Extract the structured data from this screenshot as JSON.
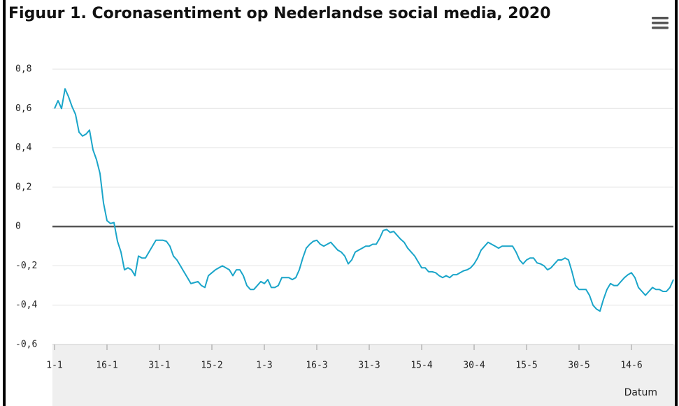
{
  "chart_data": {
    "type": "line",
    "title": "Figuur 1. Coronasentiment op Nederlandse social media, 2020",
    "x_label": "Datum",
    "categories": [
      "1-1",
      null,
      null,
      null,
      null,
      null,
      null,
      null,
      null,
      null,
      null,
      null,
      null,
      null,
      null,
      "16-1",
      null,
      null,
      null,
      null,
      null,
      null,
      null,
      null,
      null,
      null,
      null,
      null,
      null,
      null,
      "31-1",
      null,
      null,
      null,
      null,
      null,
      null,
      null,
      null,
      null,
      null,
      null,
      null,
      null,
      null,
      "15-2",
      null,
      null,
      null,
      null,
      null,
      null,
      null,
      null,
      null,
      null,
      null,
      null,
      null,
      null,
      "1-3",
      null,
      null,
      null,
      null,
      null,
      null,
      null,
      null,
      null,
      null,
      null,
      null,
      null,
      null,
      "16-3",
      null,
      null,
      null,
      null,
      null,
      null,
      null,
      null,
      null,
      null,
      null,
      null,
      null,
      null,
      "31-3",
      null,
      null,
      null,
      null,
      null,
      null,
      null,
      null,
      null,
      null,
      null,
      null,
      null,
      null,
      "15-4",
      null,
      null,
      null,
      null,
      null,
      null,
      null,
      null,
      null,
      null,
      null,
      null,
      null,
      null,
      "30-4",
      null,
      null,
      null,
      null,
      null,
      null,
      null,
      null,
      null,
      null,
      null,
      null,
      null,
      null,
      "15-5",
      null,
      null,
      null,
      null,
      null,
      null,
      null,
      null,
      null,
      null,
      null,
      null,
      null,
      null,
      "30-5",
      null,
      null,
      null,
      null,
      null,
      null,
      null,
      null,
      null,
      null,
      null,
      null,
      null,
      null,
      "14-6",
      null,
      null,
      null,
      null,
      null,
      null,
      null,
      null,
      null,
      null,
      null,
      null
    ],
    "series": [
      {
        "color": "#1aa5c9",
        "values": [
          0.6,
          0.64,
          0.6,
          0.7,
          0.66,
          0.61,
          0.57,
          0.48,
          0.46,
          0.47,
          0.49,
          0.39,
          0.34,
          0.27,
          0.12,
          0.03,
          0.015,
          0.02,
          -0.075,
          -0.13,
          -0.22,
          -0.21,
          -0.22,
          -0.25,
          -0.15,
          -0.16,
          -0.16,
          -0.13,
          -0.1,
          -0.07,
          -0.07,
          -0.07,
          -0.075,
          -0.1,
          -0.15,
          -0.17,
          -0.2,
          -0.23,
          -0.26,
          -0.29,
          -0.285,
          -0.28,
          -0.3,
          -0.31,
          -0.25,
          -0.235,
          -0.22,
          -0.21,
          -0.2,
          -0.21,
          -0.22,
          -0.25,
          -0.22,
          -0.22,
          -0.25,
          -0.3,
          -0.32,
          -0.32,
          -0.3,
          -0.28,
          -0.29,
          -0.27,
          -0.31,
          -0.31,
          -0.3,
          -0.26,
          -0.26,
          -0.26,
          -0.27,
          -0.26,
          -0.22,
          -0.16,
          -0.11,
          -0.09,
          -0.075,
          -0.07,
          -0.09,
          -0.1,
          -0.09,
          -0.08,
          -0.1,
          -0.12,
          -0.13,
          -0.15,
          -0.19,
          -0.17,
          -0.13,
          -0.12,
          -0.11,
          -0.1,
          -0.1,
          -0.09,
          -0.09,
          -0.06,
          -0.02,
          -0.015,
          -0.03,
          -0.025,
          -0.045,
          -0.065,
          -0.08,
          -0.11,
          -0.13,
          -0.15,
          -0.18,
          -0.21,
          -0.21,
          -0.23,
          -0.23,
          -0.235,
          -0.25,
          -0.26,
          -0.25,
          -0.26,
          -0.245,
          -0.245,
          -0.235,
          -0.225,
          -0.22,
          -0.21,
          -0.19,
          -0.16,
          -0.12,
          -0.1,
          -0.08,
          -0.09,
          -0.1,
          -0.11,
          -0.1,
          -0.1,
          -0.1,
          -0.1,
          -0.13,
          -0.17,
          -0.19,
          -0.17,
          -0.16,
          -0.16,
          -0.185,
          -0.19,
          -0.2,
          -0.22,
          -0.21,
          -0.19,
          -0.17,
          -0.17,
          -0.16,
          -0.17,
          -0.23,
          -0.3,
          -0.32,
          -0.32,
          -0.32,
          -0.35,
          -0.4,
          -0.42,
          -0.43,
          -0.37,
          -0.32,
          -0.29,
          -0.3,
          -0.3,
          -0.28,
          -0.26,
          -0.245,
          -0.235,
          -0.26,
          -0.31,
          -0.33,
          -0.35,
          -0.33,
          -0.31,
          -0.32,
          -0.32,
          -0.33,
          -0.33,
          -0.31,
          -0.27
        ]
      }
    ],
    "ylim": [
      -0.6,
      0.8
    ],
    "yticks": [
      {
        "value": -0.6,
        "label": "-0,6"
      },
      {
        "value": -0.4,
        "label": "-0,4"
      },
      {
        "value": -0.2,
        "label": "-0,2"
      },
      0,
      {
        "value": 0.2,
        "label": "0,2"
      },
      {
        "value": 0.4,
        "label": "0,4"
      },
      {
        "value": 0.6,
        "label": "0,6"
      },
      {
        "value": 0.8,
        "label": "0,8"
      }
    ],
    "grid": true,
    "zero_line": true
  }
}
